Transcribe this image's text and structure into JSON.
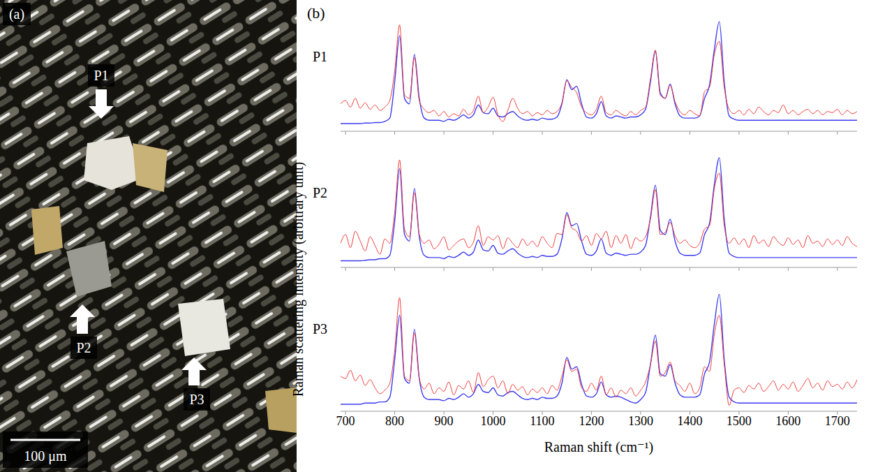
{
  "chart_data": [
    {
      "type": "line",
      "title": "P1",
      "tick_labels": false,
      "x": [
        690,
        700,
        710,
        720,
        730,
        740,
        750,
        760,
        770,
        780,
        790,
        800,
        810,
        820,
        830,
        840,
        850,
        860,
        870,
        880,
        890,
        900,
        910,
        920,
        930,
        940,
        950,
        960,
        970,
        980,
        990,
        1000,
        1010,
        1020,
        1030,
        1040,
        1050,
        1060,
        1070,
        1080,
        1090,
        1100,
        1110,
        1120,
        1130,
        1140,
        1150,
        1160,
        1170,
        1180,
        1190,
        1200,
        1210,
        1220,
        1230,
        1240,
        1250,
        1260,
        1270,
        1280,
        1290,
        1300,
        1310,
        1320,
        1330,
        1340,
        1350,
        1360,
        1370,
        1380,
        1390,
        1400,
        1410,
        1420,
        1430,
        1440,
        1450,
        1460,
        1470,
        1480,
        1490,
        1500,
        1510,
        1520,
        1530,
        1540,
        1550,
        1560,
        1570,
        1580,
        1590,
        1600,
        1610,
        1620,
        1630,
        1640,
        1650,
        1660,
        1670,
        1680,
        1690,
        1700,
        1710,
        1720,
        1730,
        1740
      ],
      "xlim": [
        690,
        1740
      ],
      "xticks": [
        700,
        800,
        900,
        1000,
        1100,
        1200,
        1300,
        1400,
        1500,
        1600,
        1700
      ],
      "ylim": [
        0,
        1.05
      ],
      "series": [
        {
          "color": "#3b3bf0",
          "values": [
            0.07,
            0.07,
            0.07,
            0.07,
            0.07,
            0.075,
            0.075,
            0.08,
            0.08,
            0.09,
            0.12,
            0.45,
            0.87,
            0.3,
            0.25,
            0.7,
            0.3,
            0.12,
            0.1,
            0.1,
            0.1,
            0.09,
            0.11,
            0.1,
            0.12,
            0.15,
            0.12,
            0.15,
            0.24,
            0.17,
            0.16,
            0.21,
            0.14,
            0.13,
            0.16,
            0.18,
            0.14,
            0.11,
            0.1,
            0.11,
            0.1,
            0.12,
            0.11,
            0.11,
            0.13,
            0.25,
            0.47,
            0.38,
            0.41,
            0.25,
            0.13,
            0.12,
            0.16,
            0.27,
            0.14,
            0.12,
            0.14,
            0.13,
            0.12,
            0.13,
            0.13,
            0.15,
            0.2,
            0.45,
            0.73,
            0.35,
            0.3,
            0.43,
            0.25,
            0.14,
            0.12,
            0.12,
            0.12,
            0.14,
            0.3,
            0.42,
            0.75,
            1.0,
            0.45,
            0.14,
            0.11,
            0.1,
            0.1,
            0.1,
            0.1,
            0.1,
            0.1,
            0.1,
            0.1,
            0.1,
            0.1,
            0.1,
            0.1,
            0.1,
            0.1,
            0.1,
            0.1,
            0.1,
            0.1,
            0.1,
            0.1,
            0.1,
            0.1,
            0.1,
            0.1,
            0.1
          ]
        },
        {
          "color": "#f03a3a",
          "values": [
            0.25,
            0.28,
            0.22,
            0.3,
            0.21,
            0.26,
            0.2,
            0.24,
            0.19,
            0.22,
            0.28,
            0.55,
            0.97,
            0.33,
            0.3,
            0.67,
            0.28,
            0.2,
            0.17,
            0.19,
            0.14,
            0.18,
            0.13,
            0.16,
            0.14,
            0.2,
            0.15,
            0.19,
            0.32,
            0.17,
            0.22,
            0.31,
            0.15,
            0.09,
            0.19,
            0.3,
            0.21,
            0.16,
            0.18,
            0.14,
            0.17,
            0.15,
            0.19,
            0.16,
            0.18,
            0.26,
            0.46,
            0.4,
            0.35,
            0.22,
            0.17,
            0.15,
            0.2,
            0.32,
            0.17,
            0.15,
            0.19,
            0.16,
            0.14,
            0.18,
            0.15,
            0.19,
            0.22,
            0.48,
            0.74,
            0.33,
            0.3,
            0.42,
            0.27,
            0.18,
            0.15,
            0.19,
            0.16,
            0.14,
            0.36,
            0.4,
            0.7,
            0.82,
            0.4,
            0.2,
            0.16,
            0.19,
            0.15,
            0.2,
            0.16,
            0.22,
            0.18,
            0.15,
            0.19,
            0.17,
            0.24,
            0.16,
            0.19,
            0.15,
            0.18,
            0.2,
            0.16,
            0.19,
            0.15,
            0.18,
            0.17,
            0.2,
            0.15,
            0.19,
            0.16,
            0.18
          ]
        }
      ]
    },
    {
      "type": "line",
      "title": "P2",
      "tick_labels": false,
      "x": [
        690,
        700,
        710,
        720,
        730,
        740,
        750,
        760,
        770,
        780,
        790,
        800,
        810,
        820,
        830,
        840,
        850,
        860,
        870,
        880,
        890,
        900,
        910,
        920,
        930,
        940,
        950,
        960,
        970,
        980,
        990,
        1000,
        1010,
        1020,
        1030,
        1040,
        1050,
        1060,
        1070,
        1080,
        1090,
        1100,
        1110,
        1120,
        1130,
        1140,
        1150,
        1160,
        1170,
        1180,
        1190,
        1200,
        1210,
        1220,
        1230,
        1240,
        1250,
        1260,
        1270,
        1280,
        1290,
        1300,
        1310,
        1320,
        1330,
        1340,
        1350,
        1360,
        1370,
        1380,
        1390,
        1400,
        1410,
        1420,
        1430,
        1440,
        1450,
        1460,
        1470,
        1480,
        1490,
        1500,
        1510,
        1520,
        1530,
        1540,
        1550,
        1560,
        1570,
        1580,
        1590,
        1600,
        1610,
        1620,
        1630,
        1640,
        1650,
        1660,
        1670,
        1680,
        1690,
        1700,
        1710,
        1720,
        1730,
        1740
      ],
      "xlim": [
        690,
        1740
      ],
      "xticks": [
        700,
        800,
        900,
        1000,
        1100,
        1200,
        1300,
        1400,
        1500,
        1600,
        1700
      ],
      "ylim": [
        0,
        1.05
      ],
      "series": [
        {
          "color": "#3b3bf0",
          "values": [
            0.06,
            0.06,
            0.06,
            0.06,
            0.06,
            0.065,
            0.07,
            0.07,
            0.08,
            0.08,
            0.11,
            0.42,
            0.9,
            0.3,
            0.24,
            0.72,
            0.28,
            0.11,
            0.09,
            0.09,
            0.09,
            0.08,
            0.1,
            0.09,
            0.11,
            0.14,
            0.11,
            0.14,
            0.25,
            0.16,
            0.15,
            0.2,
            0.13,
            0.12,
            0.15,
            0.17,
            0.13,
            0.1,
            0.09,
            0.1,
            0.09,
            0.11,
            0.1,
            0.1,
            0.12,
            0.26,
            0.5,
            0.38,
            0.4,
            0.24,
            0.12,
            0.11,
            0.15,
            0.26,
            0.13,
            0.11,
            0.13,
            0.12,
            0.11,
            0.12,
            0.12,
            0.14,
            0.2,
            0.46,
            0.75,
            0.34,
            0.3,
            0.44,
            0.24,
            0.13,
            0.11,
            0.11,
            0.11,
            0.13,
            0.3,
            0.4,
            0.76,
            1.0,
            0.44,
            0.13,
            0.1,
            0.09,
            0.09,
            0.09,
            0.09,
            0.09,
            0.09,
            0.09,
            0.09,
            0.09,
            0.09,
            0.09,
            0.09,
            0.09,
            0.09,
            0.09,
            0.09,
            0.09,
            0.09,
            0.09,
            0.09,
            0.09,
            0.09,
            0.09,
            0.09,
            0.09
          ]
        },
        {
          "color": "#f03a3a",
          "values": [
            0.22,
            0.3,
            0.18,
            0.33,
            0.24,
            0.15,
            0.28,
            0.2,
            0.12,
            0.26,
            0.22,
            0.5,
            0.98,
            0.35,
            0.28,
            0.68,
            0.3,
            0.22,
            0.25,
            0.17,
            0.21,
            0.28,
            0.16,
            0.2,
            0.24,
            0.26,
            0.18,
            0.23,
            0.38,
            0.2,
            0.28,
            0.25,
            0.29,
            0.17,
            0.27,
            0.22,
            0.18,
            0.26,
            0.2,
            0.24,
            0.19,
            0.28,
            0.22,
            0.18,
            0.31,
            0.3,
            0.48,
            0.36,
            0.33,
            0.24,
            0.29,
            0.2,
            0.31,
            0.26,
            0.33,
            0.18,
            0.29,
            0.22,
            0.3,
            0.17,
            0.27,
            0.24,
            0.28,
            0.44,
            0.71,
            0.3,
            0.32,
            0.41,
            0.29,
            0.22,
            0.25,
            0.2,
            0.18,
            0.22,
            0.35,
            0.38,
            0.72,
            0.86,
            0.38,
            0.22,
            0.27,
            0.21,
            0.26,
            0.18,
            0.29,
            0.22,
            0.25,
            0.19,
            0.28,
            0.23,
            0.2,
            0.27,
            0.21,
            0.25,
            0.18,
            0.29,
            0.22,
            0.24,
            0.19,
            0.26,
            0.21,
            0.25,
            0.2,
            0.28,
            0.22,
            0.19
          ]
        }
      ]
    },
    {
      "type": "line",
      "title": "P3",
      "tick_labels": "x",
      "x_label": "Raman shift (cm⁻¹)",
      "x": [
        690,
        700,
        710,
        720,
        730,
        740,
        750,
        760,
        770,
        780,
        790,
        800,
        810,
        820,
        830,
        840,
        850,
        860,
        870,
        880,
        890,
        900,
        910,
        920,
        930,
        940,
        950,
        960,
        970,
        980,
        990,
        1000,
        1010,
        1020,
        1030,
        1040,
        1050,
        1060,
        1070,
        1080,
        1090,
        1100,
        1110,
        1120,
        1130,
        1140,
        1150,
        1160,
        1170,
        1180,
        1190,
        1200,
        1210,
        1220,
        1230,
        1240,
        1250,
        1260,
        1270,
        1280,
        1290,
        1300,
        1310,
        1320,
        1330,
        1340,
        1350,
        1360,
        1370,
        1380,
        1390,
        1400,
        1410,
        1420,
        1430,
        1440,
        1450,
        1460,
        1470,
        1480,
        1490,
        1500,
        1510,
        1520,
        1530,
        1540,
        1550,
        1560,
        1570,
        1580,
        1590,
        1600,
        1610,
        1620,
        1630,
        1640,
        1650,
        1660,
        1670,
        1680,
        1690,
        1700,
        1710,
        1720,
        1730,
        1740
      ],
      "xlim": [
        690,
        1740
      ],
      "xticks": [
        700,
        800,
        900,
        1000,
        1100,
        1200,
        1300,
        1400,
        1500,
        1600,
        1700
      ],
      "ylim": [
        0,
        1.05
      ],
      "series": [
        {
          "color": "#3b3bf0",
          "values": [
            0.06,
            0.06,
            0.06,
            0.06,
            0.06,
            0.07,
            0.07,
            0.07,
            0.08,
            0.08,
            0.12,
            0.44,
            0.82,
            0.28,
            0.24,
            0.7,
            0.28,
            0.12,
            0.1,
            0.1,
            0.1,
            0.09,
            0.11,
            0.1,
            0.12,
            0.15,
            0.12,
            0.15,
            0.23,
            0.17,
            0.16,
            0.2,
            0.14,
            0.13,
            0.16,
            0.17,
            0.14,
            0.11,
            0.1,
            0.11,
            0.1,
            0.12,
            0.11,
            0.11,
            0.13,
            0.24,
            0.46,
            0.36,
            0.38,
            0.23,
            0.13,
            0.12,
            0.15,
            0.25,
            0.14,
            0.12,
            0.13,
            0.12,
            0.1,
            0.08,
            0.07,
            0.1,
            0.16,
            0.4,
            0.65,
            0.32,
            0.3,
            0.4,
            0.24,
            0.14,
            0.12,
            0.12,
            0.12,
            0.14,
            0.32,
            0.42,
            0.75,
            1.0,
            0.44,
            0.12,
            0.08,
            0.07,
            0.07,
            0.07,
            0.07,
            0.07,
            0.07,
            0.07,
            0.07,
            0.07,
            0.07,
            0.07,
            0.07,
            0.07,
            0.07,
            0.07,
            0.07,
            0.07,
            0.07,
            0.07,
            0.07,
            0.07,
            0.07,
            0.07,
            0.07,
            0.07
          ]
        },
        {
          "color": "#f03a3a",
          "values": [
            0.3,
            0.28,
            0.35,
            0.26,
            0.31,
            0.22,
            0.27,
            0.2,
            0.15,
            0.18,
            0.24,
            0.52,
            0.97,
            0.3,
            0.26,
            0.67,
            0.28,
            0.19,
            0.24,
            0.15,
            0.2,
            0.17,
            0.25,
            0.14,
            0.22,
            0.19,
            0.26,
            0.16,
            0.33,
            0.21,
            0.27,
            0.3,
            0.2,
            0.26,
            0.15,
            0.23,
            0.18,
            0.21,
            0.14,
            0.19,
            0.16,
            0.2,
            0.15,
            0.22,
            0.18,
            0.3,
            0.44,
            0.34,
            0.36,
            0.2,
            0.17,
            0.24,
            0.18,
            0.3,
            0.14,
            0.2,
            0.12,
            0.18,
            0.15,
            0.2,
            0.13,
            0.18,
            0.25,
            0.4,
            0.6,
            0.3,
            0.33,
            0.42,
            0.26,
            0.22,
            0.17,
            0.24,
            0.15,
            0.2,
            0.38,
            0.34,
            0.66,
            0.82,
            0.4,
            0.05,
            0.18,
            0.2,
            0.16,
            0.22,
            0.19,
            0.24,
            0.17,
            0.21,
            0.26,
            0.18,
            0.23,
            0.19,
            0.25,
            0.17,
            0.22,
            0.28,
            0.2,
            0.24,
            0.18,
            0.26,
            0.21,
            0.23,
            0.19,
            0.25,
            0.2,
            0.27
          ]
        }
      ]
    }
  ],
  "figure": {
    "panel_labels": [
      "(a)",
      "(b)"
    ],
    "y_label": "Raman scattering intensity (arbitrary unit)",
    "micrograph": {
      "markers": [
        "P1",
        "P2",
        "P3"
      ],
      "scale_bar": "100 μm"
    }
  }
}
